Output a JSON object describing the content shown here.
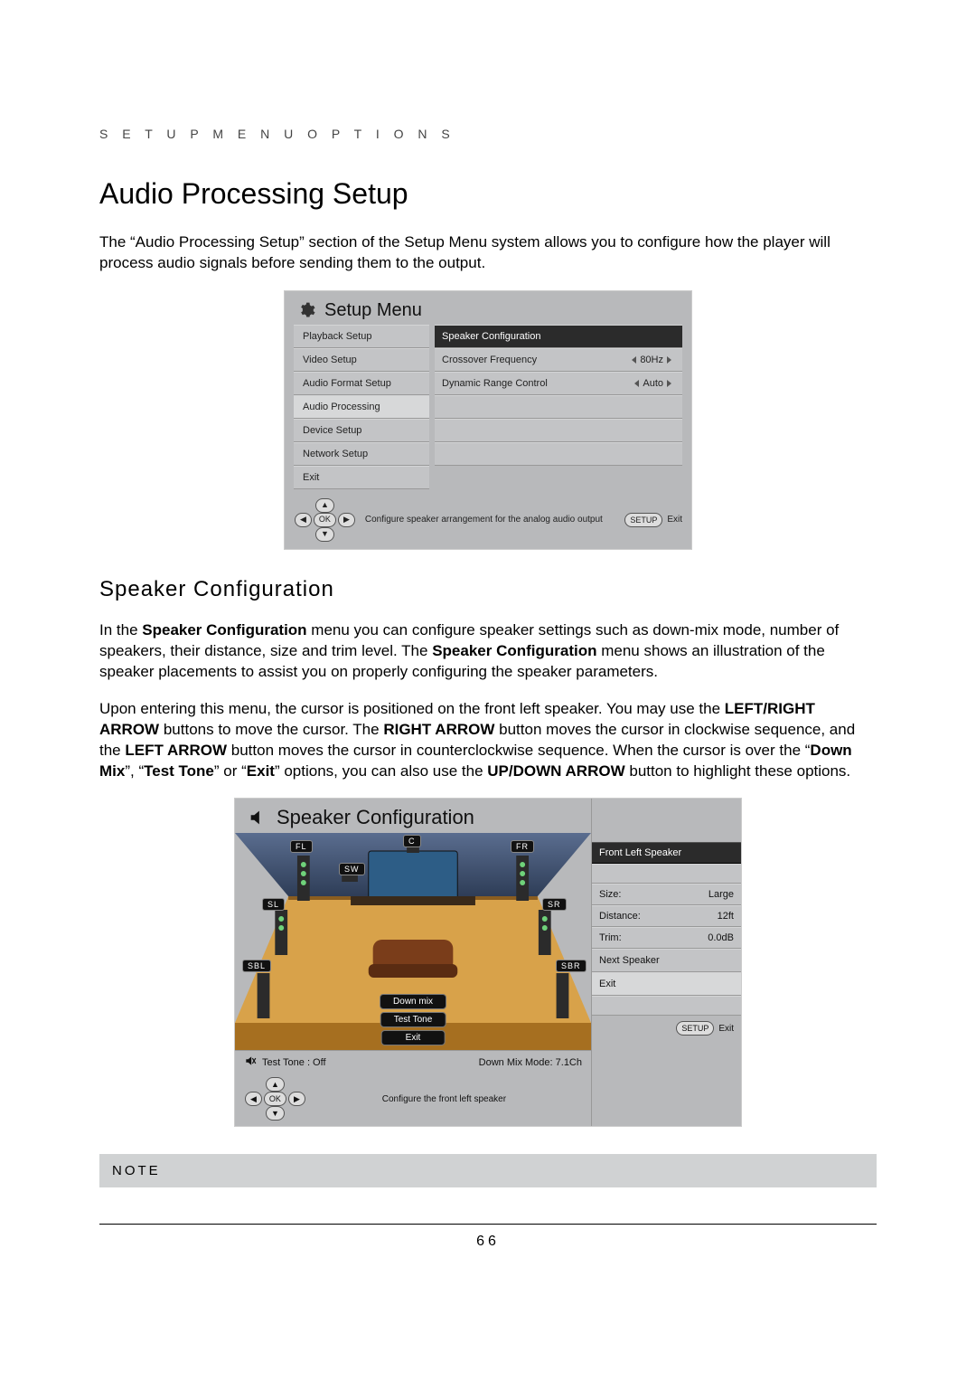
{
  "header": {
    "text": "S E T U P   M E N U   O P T I O N S"
  },
  "h1": "Audio Processing Setup",
  "intro": "The “Audio Processing Setup” section of the Setup Menu system allows you to configure how the player will process audio signals before sending them to the output.",
  "setup_menu": {
    "title": "Setup Menu",
    "left_items": [
      "Playback Setup",
      "Video Setup",
      "Audio Format Setup",
      "Audio Processing",
      "Device Setup",
      "Network Setup",
      "Exit"
    ],
    "left_selected_index": 3,
    "right": {
      "header": "Speaker Configuration",
      "rows": [
        {
          "label": "Crossover Frequency",
          "value": "80Hz",
          "has_arrows": true
        },
        {
          "label": "Dynamic Range Control",
          "value": "Auto",
          "has_arrows": true
        }
      ],
      "blank_rows": 3
    },
    "footer_hint": "Configure speaker arrangement for the analog audio output",
    "footer_setup": "SETUP",
    "footer_exit": "Exit",
    "nav_ok": "OK"
  },
  "h2": "Speaker Configuration",
  "para1_html": "In the <b>Speaker Configuration</b> menu you can configure speaker settings such as down-mix mode, number of speakers, their distance, size and trim level.  The <b>Speaker Configuration</b> menu shows an illustration of the speaker placements to assist you on properly configuring the speaker parameters.",
  "para2_html": "Upon entering this menu, the cursor is positioned on the front left speaker.  You may use the <b>LEFT/RIGHT ARROW</b> buttons to move the cursor.  The <b>RIGHT ARROW</b> button moves the cursor in clockwise sequence, and the <b>LEFT ARROW</b> button moves the cursor in counterclockwise sequence.  When the cursor is over the “<b>Down Mix</b>”, “<b>Test Tone</b>” or “<b>Exit</b>” options, you can also use the <b>UP/DOWN ARROW</b> button to highlight these options.",
  "speaker_fig": {
    "title": "Speaker Configuration",
    "labels": {
      "fl": "FL",
      "c": "C",
      "fr": "FR",
      "sw": "SW",
      "sl": "SL",
      "sr": "SR",
      "sbl": "SBL",
      "sbr": "SBR"
    },
    "buttons": {
      "down_mix": "Down mix",
      "test_tone": "Test Tone",
      "exit": "Exit"
    },
    "status_testtone": "Test Tone : Off",
    "status_mode": "Down Mix Mode: 7.1Ch",
    "footer_hint": "Configure the front left speaker",
    "footer_setup": "SETUP",
    "footer_exit": "Exit",
    "nav_ok": "OK",
    "right_panel": {
      "header": "Front Left Speaker",
      "props": [
        {
          "k": "Size:",
          "v": "Large"
        },
        {
          "k": "Distance:",
          "v": "12ft"
        },
        {
          "k": "Trim:",
          "v": "0.0dB"
        }
      ],
      "actions": [
        "Next Speaker",
        "Exit"
      ],
      "selected_action_index": 1
    },
    "room": {
      "floor_color": "#d8a24a",
      "floor_shadow": "#a66f20",
      "wall_gradient_top": "#5a6d8f",
      "wall_gradient_bottom": "#2e3d57",
      "tv_color": "#2d5d86",
      "couch_color": "#7a3d1a",
      "speaker_body": "#2b2b2b"
    }
  },
  "note_label": "NOTE",
  "page_number": "66",
  "colors": {
    "panel_bg": "#b8b9bb",
    "row_bg": "#c3c4c6",
    "row_sel_bg": "#d7d8d9",
    "header_bg": "#2b2b2b"
  }
}
